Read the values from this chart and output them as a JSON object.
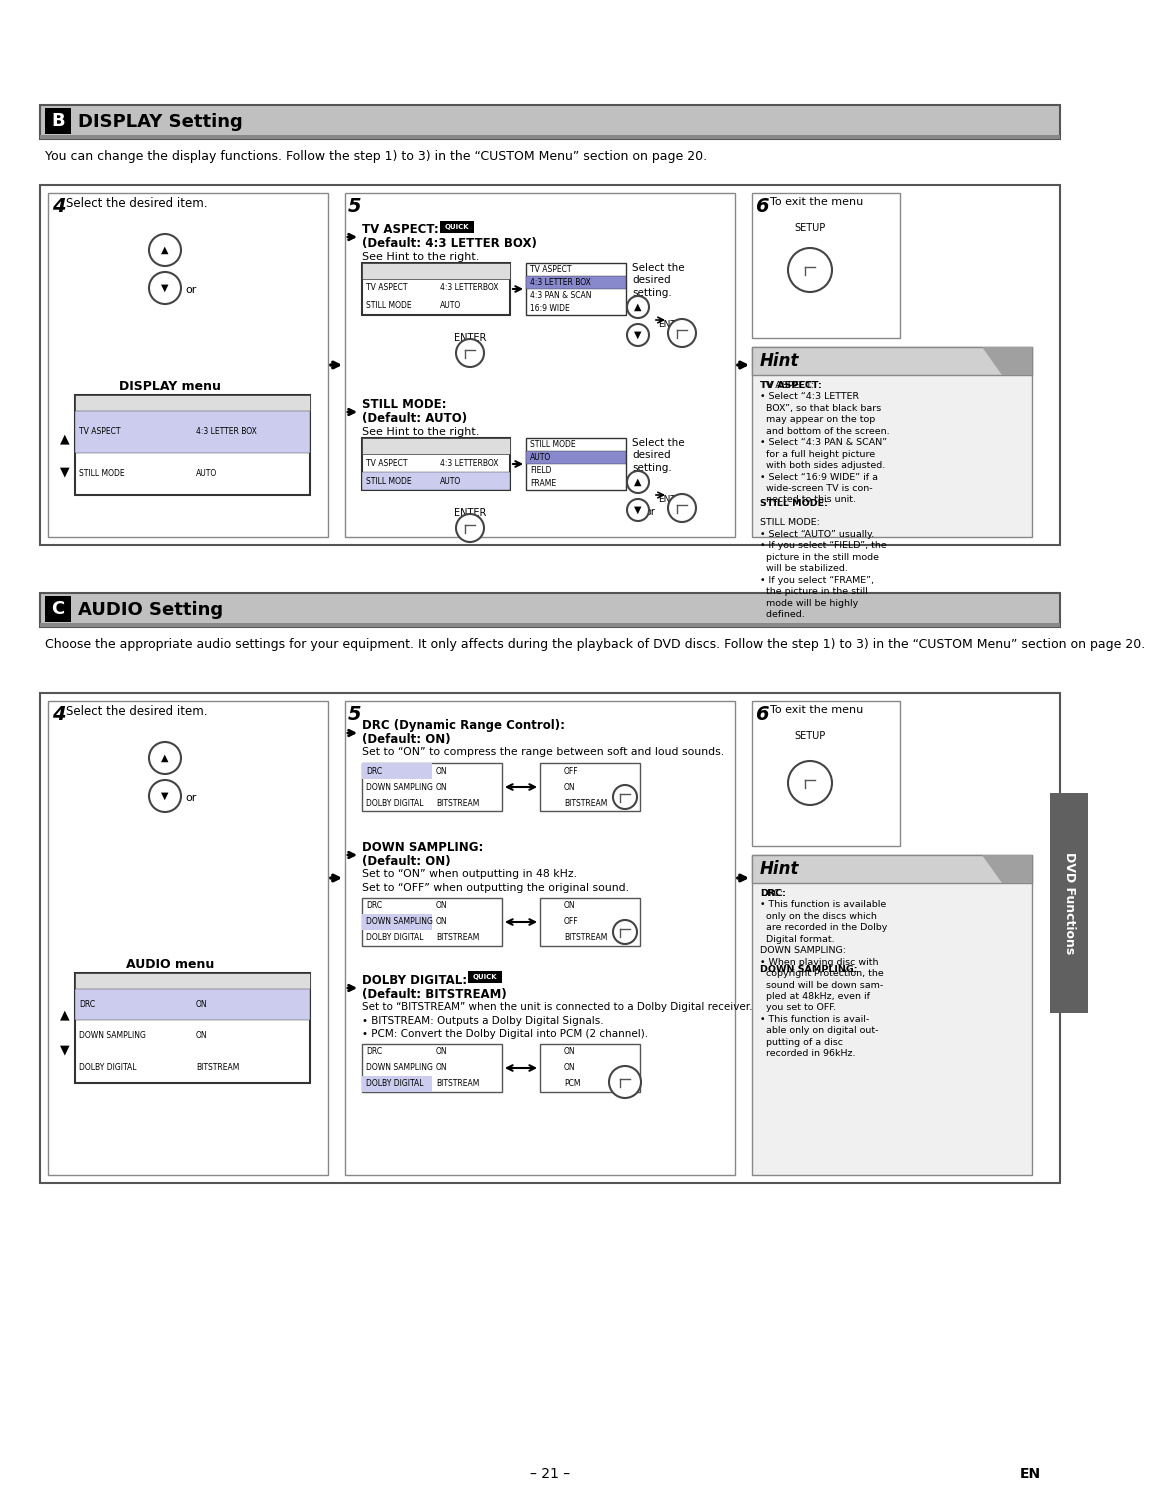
{
  "page_bg": "#ffffff",
  "section_b_title": "DISPLAY Setting",
  "section_b_desc": "You can change the display functions. Follow the step 1) to 3) in the “CUSTOM Menu” section on page 20.",
  "section_c_title": "AUDIO Setting",
  "section_c_desc": "Choose the appropriate audio settings for your equipment. It only affects during the playback of DVD discs. Follow the step 1) to 3) in the “CUSTOM Menu” section on page 20.",
  "page_number": "– 21 –",
  "en_label": "EN",
  "dvd_functions_label": "DVD Functions",
  "gray_header": "#c0c0c0",
  "dark_gray": "#555555",
  "hint_bg": "#f0f0f0",
  "hint_header_bg": "#b0b0b0"
}
